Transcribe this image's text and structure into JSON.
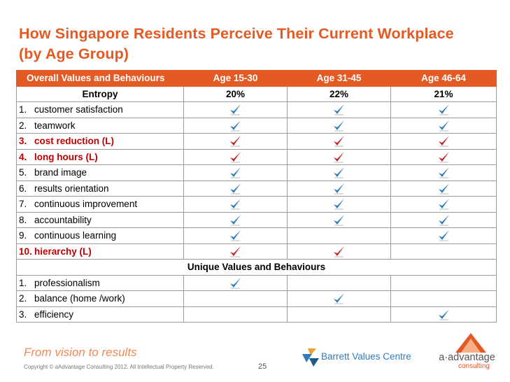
{
  "title_line1": "How Singapore Residents Perceive Their Current Workplace",
  "title_line2": "(by Age Group)",
  "table": {
    "header": [
      "Overall Values and Behaviours",
      "Age 15-30",
      "Age 31-45",
      "Age 46-64"
    ],
    "entropy": {
      "label": "Entropy",
      "values": [
        "20%",
        "22%",
        "21%"
      ]
    },
    "rows": [
      {
        "num": "1.",
        "label": "customer satisfaction",
        "limiting": false,
        "checks": [
          true,
          true,
          true
        ]
      },
      {
        "num": "2.",
        "label": "teamwork",
        "limiting": false,
        "checks": [
          true,
          true,
          true
        ]
      },
      {
        "num": "3.",
        "label": "cost reduction (L)",
        "limiting": true,
        "checks": [
          true,
          true,
          true
        ]
      },
      {
        "num": "4.",
        "label": "long hours (L)",
        "limiting": true,
        "checks": [
          true,
          true,
          true
        ]
      },
      {
        "num": "5.",
        "label": "brand image",
        "limiting": false,
        "checks": [
          true,
          true,
          true
        ]
      },
      {
        "num": "6.",
        "label": "results orientation",
        "limiting": false,
        "checks": [
          true,
          true,
          true
        ]
      },
      {
        "num": "7.",
        "label": "continuous improvement",
        "limiting": false,
        "checks": [
          true,
          true,
          true
        ]
      },
      {
        "num": "8.",
        "label": "accountability",
        "limiting": false,
        "checks": [
          true,
          true,
          true
        ]
      },
      {
        "num": "9.",
        "label": "continuous learning",
        "limiting": false,
        "checks": [
          true,
          false,
          true
        ]
      },
      {
        "num": "10.",
        "label": "hierarchy (L)",
        "limiting": true,
        "checks": [
          true,
          true,
          false
        ]
      }
    ],
    "unique_header": "Unique Values and Behaviours",
    "unique_rows": [
      {
        "num": "1.",
        "label": "professionalism",
        "checks": [
          true,
          false,
          false
        ]
      },
      {
        "num": "2.",
        "label": "balance (home /work)",
        "checks": [
          false,
          true,
          false
        ]
      },
      {
        "num": "3.",
        "label": "efficiency",
        "checks": [
          false,
          false,
          true
        ]
      }
    ]
  },
  "colors": {
    "accent": "#e35a25",
    "tick_blue": "#2f7db8",
    "tick_red": "#c0262c"
  },
  "footer": {
    "slogan": "From vision to results",
    "copyright": "Copyright © aAdvantage Consulting 2012. All Intellectual Property Reserved.",
    "page": "25",
    "barrett": "Barrett Values Centre",
    "aadvantage": "a·advantage",
    "aadvantage_sub": "consulting"
  }
}
